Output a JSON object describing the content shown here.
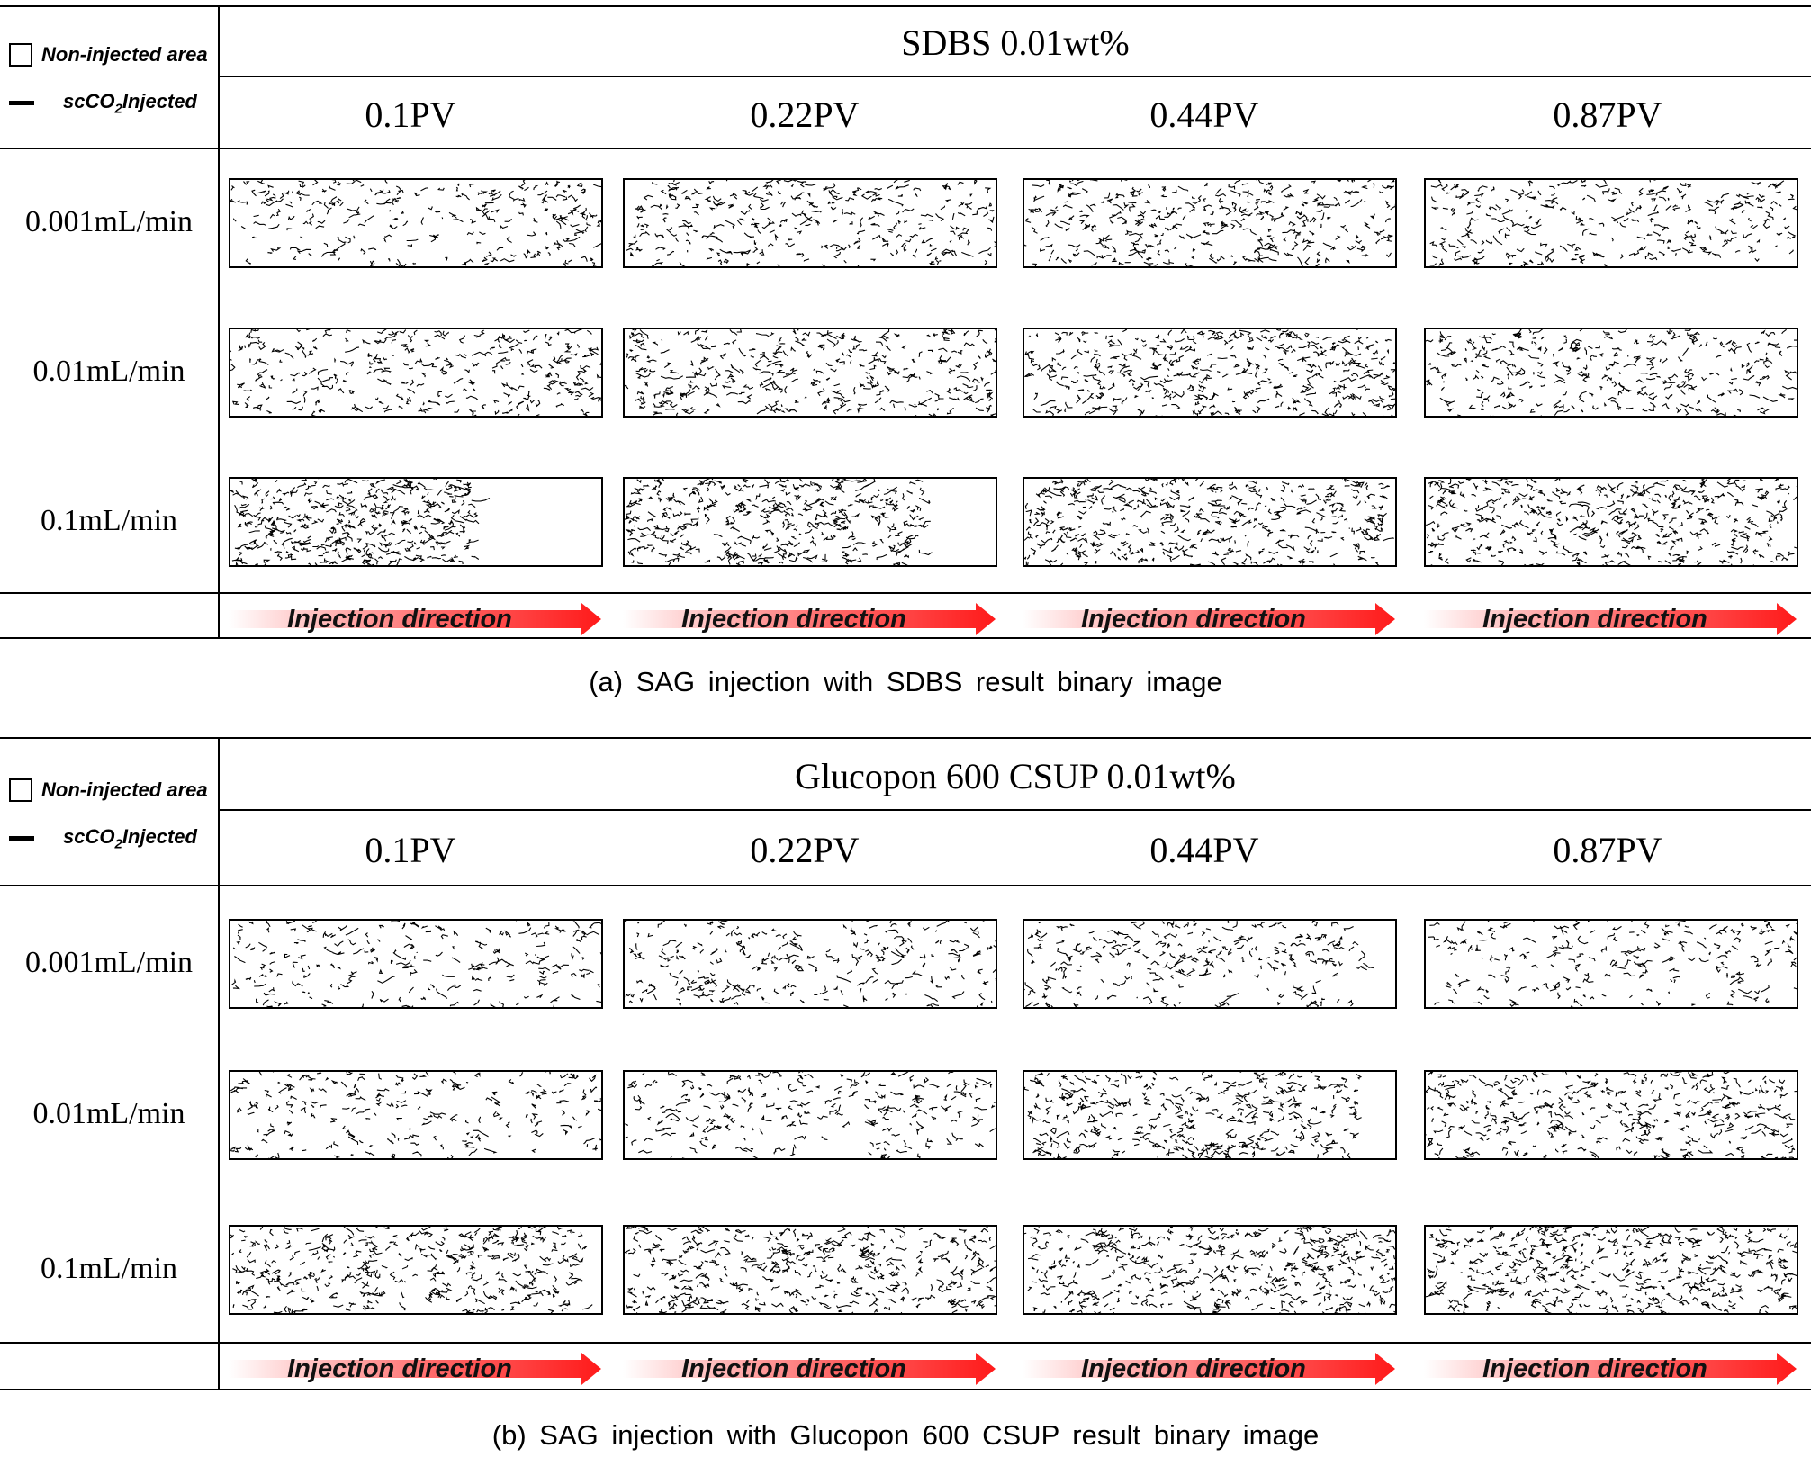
{
  "legend": {
    "non_injected_label": "Non-injected area",
    "injected_label_prefix": "scCO",
    "injected_label_sub": "2",
    "injected_label_suffix": "Injected"
  },
  "pv_labels": [
    "0.1PV",
    "0.22PV",
    "0.44PV",
    "0.87PV"
  ],
  "rate_labels": [
    "0.001mL/min",
    "0.01mL/min",
    "0.1mL/min"
  ],
  "arrow_label": "Injection direction",
  "colors": {
    "arrow_red": "#ff1a1a",
    "arrow_fade": "#ffffff",
    "line": "#000000"
  },
  "panels": [
    {
      "id": "a",
      "title": "SDBS 0.01wt%",
      "caption": "(a) SAG injection with SDBS result binary image",
      "density": [
        [
          0.5,
          0.6,
          0.65,
          0.55
        ],
        [
          0.6,
          0.65,
          0.75,
          0.6
        ],
        [
          0.7,
          0.75,
          0.8,
          0.8
        ]
      ],
      "reach": [
        [
          1.0,
          1.0,
          1.0,
          1.0
        ],
        [
          1.0,
          1.0,
          1.0,
          1.0
        ],
        [
          0.65,
          0.8,
          0.97,
          1.0
        ]
      ]
    },
    {
      "id": "b",
      "title": "Glucopon 600 CSUP 0.01wt%",
      "caption": "(b) SAG injection with Glucopon 600 CSUP result binary image",
      "density": [
        [
          0.45,
          0.5,
          0.5,
          0.45
        ],
        [
          0.45,
          0.5,
          0.7,
          0.7
        ],
        [
          0.7,
          0.75,
          0.8,
          0.85
        ]
      ],
      "reach": [
        [
          1.0,
          1.0,
          0.92,
          1.0
        ],
        [
          1.0,
          1.0,
          0.9,
          1.0
        ],
        [
          0.95,
          1.0,
          1.0,
          1.0
        ]
      ]
    }
  ]
}
